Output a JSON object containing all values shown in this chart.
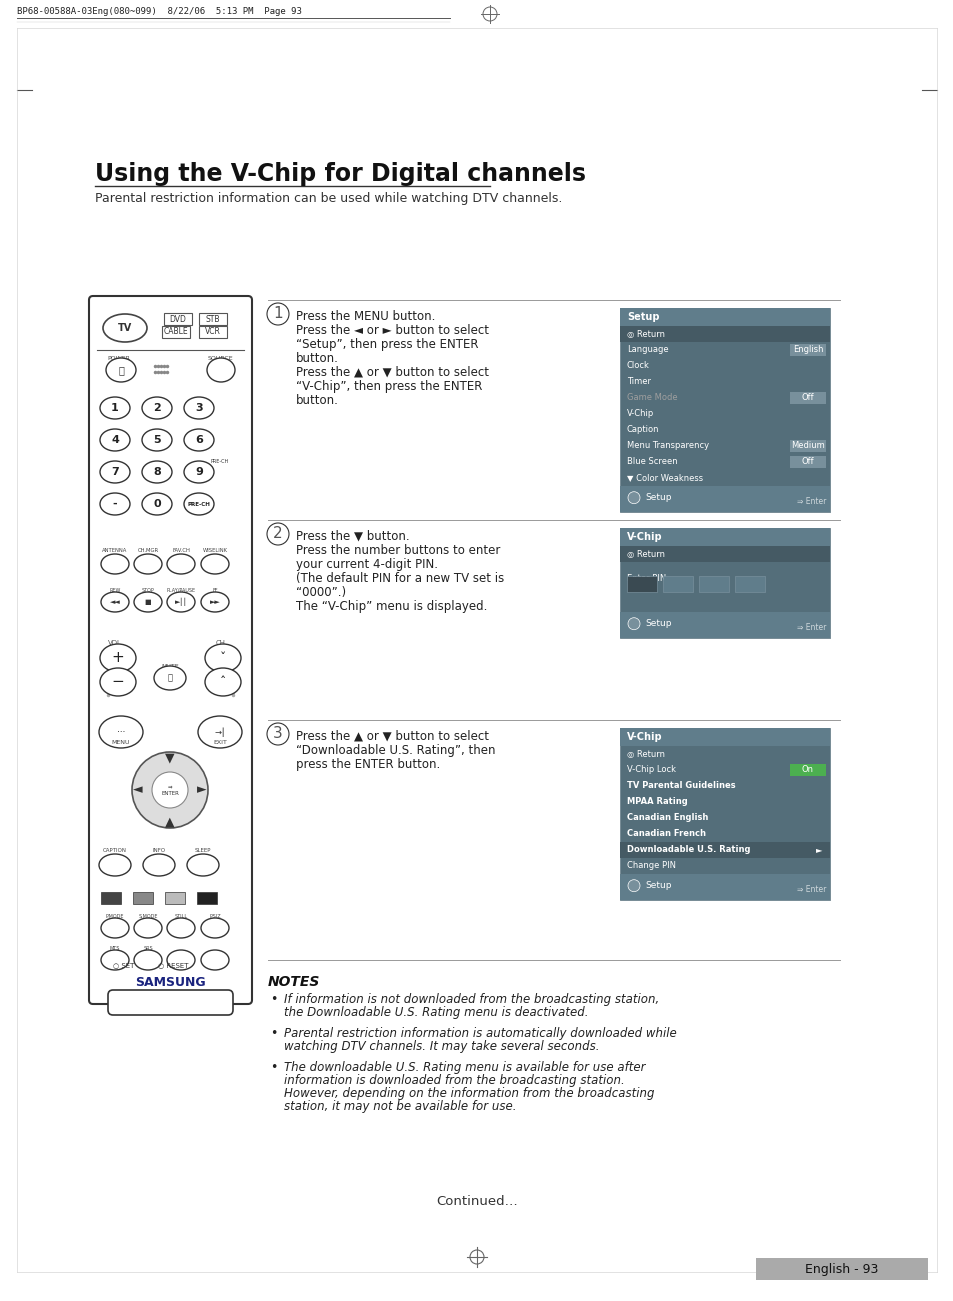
{
  "page_header": "BP68-00588A-03Eng(080~099)  8/22/06  5:13 PM  Page 93",
  "title": "Using the V-Chip for Digital channels",
  "subtitle": "Parental restriction information can be used while watching DTV channels.",
  "bg_color": "#ffffff",
  "step1_text_lines": [
    "Press the MENU button.",
    "Press the ◄ or ► button to select",
    "“Setup”, then press the ENTER",
    "button.",
    "Press the ▲ or ▼ button to select",
    "“V-Chip”, then press the ENTER",
    "button."
  ],
  "step2_text_lines": [
    "Press the ▼ button.",
    "Press the number buttons to enter",
    "your current 4-digit PIN.",
    "(The default PIN for a new TV set is",
    "“0000”.)",
    "The “V-Chip” menu is displayed."
  ],
  "step3_text_lines": [
    "Press the ▲ or ▼ button to select",
    "“Downloadable U.S. Rating”, then",
    "press the ENTER button."
  ],
  "notes_title": "NOTES",
  "notes": [
    [
      "If information is not downloaded from the broadcasting station,",
      "the Downloadable U.S. Rating menu is deactivated."
    ],
    [
      "Parental restriction information is automatically downloaded while",
      "watching DTV channels. It may take several seconds."
    ],
    [
      "The downloadable U.S. Rating menu is available for use after",
      "information is downloaded from the broadcasting station.",
      "However, depending on the information from the broadcasting",
      "station, it may not be available for use."
    ]
  ],
  "continued": "Continued…",
  "page_number": "English - 93",
  "setup_menu_rows": [
    {
      "label": "◎ Return",
      "value": "",
      "selected": true,
      "dimmed": false
    },
    {
      "label": "Language",
      "value": "English",
      "selected": false,
      "dimmed": false
    },
    {
      "label": "Clock",
      "value": "",
      "selected": false,
      "dimmed": false
    },
    {
      "label": "Timer",
      "value": "",
      "selected": false,
      "dimmed": false
    },
    {
      "label": "Game Mode",
      "value": "Off",
      "selected": false,
      "dimmed": true
    },
    {
      "label": "V-Chip",
      "value": "",
      "selected": false,
      "dimmed": false
    },
    {
      "label": "Caption",
      "value": "",
      "selected": false,
      "dimmed": false
    },
    {
      "label": "Menu Transparency",
      "value": "Medium",
      "selected": false,
      "dimmed": false
    },
    {
      "label": "Blue Screen",
      "value": "Off",
      "selected": false,
      "dimmed": false
    },
    {
      "label": "▼ Color Weakness",
      "value": "",
      "selected": false,
      "dimmed": false
    }
  ],
  "vchip_main_rows": [
    {
      "label": "◎ Return",
      "value": "",
      "selected": false,
      "bold": false,
      "highlight": false
    },
    {
      "label": "V-Chip Lock",
      "value": "On",
      "selected": false,
      "bold": false,
      "highlight": false
    },
    {
      "label": "TV Parental Guidelines",
      "value": "",
      "selected": false,
      "bold": true,
      "highlight": false
    },
    {
      "label": "MPAA Rating",
      "value": "",
      "selected": false,
      "bold": true,
      "highlight": false
    },
    {
      "label": "Canadian English",
      "value": "",
      "selected": false,
      "bold": true,
      "highlight": false
    },
    {
      "label": "Canadian French",
      "value": "",
      "selected": false,
      "bold": true,
      "highlight": false
    },
    {
      "label": "Downloadable U.S. Rating",
      "value": "►",
      "selected": true,
      "bold": true,
      "highlight": true
    },
    {
      "label": "Change PIN",
      "value": "",
      "selected": false,
      "bold": false,
      "highlight": false
    }
  ]
}
